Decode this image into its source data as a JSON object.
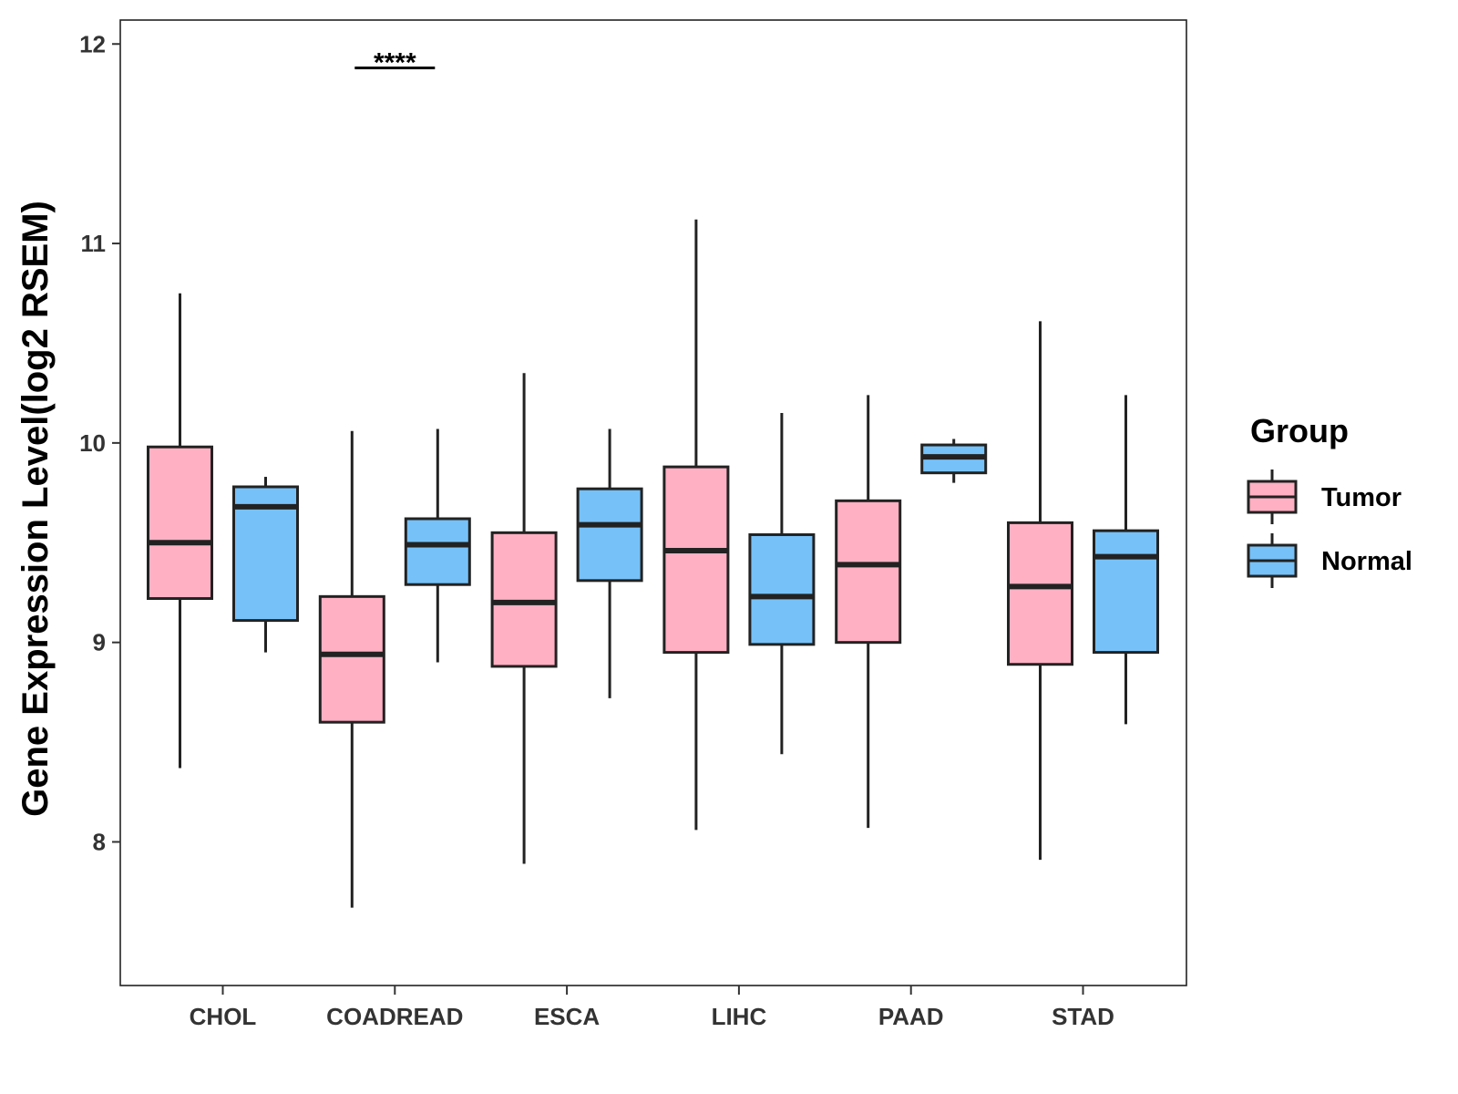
{
  "chart_data": {
    "type": "boxplot",
    "title": "",
    "xlabel": "",
    "ylabel": "Gene Expression Level(log2 RSEM)",
    "ylim": [
      7.28,
      12.12
    ],
    "yticks": [
      8,
      9,
      10,
      11,
      12
    ],
    "categories": [
      "CHOL",
      "COADREAD",
      "ESCA",
      "LIHC",
      "PAAD",
      "STAD"
    ],
    "legend": {
      "title": "Group",
      "position": "right",
      "entries": [
        {
          "name": "Tumor",
          "color": "#FFB0C3"
        },
        {
          "name": "Normal",
          "color": "#76C1F8"
        }
      ]
    },
    "series": [
      {
        "name": "Tumor",
        "color": "#FFB0C3",
        "boxes": [
          {
            "category": "CHOL",
            "min": 8.37,
            "q1": 9.22,
            "median": 9.5,
            "q3": 9.98,
            "max": 10.75
          },
          {
            "category": "COADREAD",
            "min": 7.67,
            "q1": 8.6,
            "median": 8.94,
            "q3": 9.23,
            "max": 10.06
          },
          {
            "category": "ESCA",
            "min": 7.89,
            "q1": 8.88,
            "median": 9.2,
            "q3": 9.55,
            "max": 10.35
          },
          {
            "category": "LIHC",
            "min": 8.06,
            "q1": 8.95,
            "median": 9.46,
            "q3": 9.88,
            "max": 11.12
          },
          {
            "category": "PAAD",
            "min": 8.07,
            "q1": 9.0,
            "median": 9.39,
            "q3": 9.71,
            "max": 10.24
          },
          {
            "category": "STAD",
            "min": 7.91,
            "q1": 8.89,
            "median": 9.28,
            "q3": 9.6,
            "max": 10.61
          }
        ]
      },
      {
        "name": "Normal",
        "color": "#76C1F8",
        "boxes": [
          {
            "category": "CHOL",
            "min": 8.95,
            "q1": 9.11,
            "median": 9.68,
            "q3": 9.78,
            "max": 9.83
          },
          {
            "category": "COADREAD",
            "min": 8.9,
            "q1": 9.29,
            "median": 9.49,
            "q3": 9.62,
            "max": 10.07
          },
          {
            "category": "ESCA",
            "min": 8.72,
            "q1": 9.31,
            "median": 9.59,
            "q3": 9.77,
            "max": 10.07
          },
          {
            "category": "LIHC",
            "min": 8.44,
            "q1": 8.99,
            "median": 9.23,
            "q3": 9.54,
            "max": 10.15
          },
          {
            "category": "PAAD",
            "min": 9.8,
            "q1": 9.85,
            "median": 9.93,
            "q3": 9.99,
            "max": 10.02
          },
          {
            "category": "STAD",
            "min": 8.59,
            "q1": 8.95,
            "median": 9.43,
            "q3": 9.56,
            "max": 10.24
          }
        ]
      }
    ],
    "annotations": [
      {
        "category": "COADREAD",
        "text": "****",
        "y": 11.88
      }
    ]
  }
}
